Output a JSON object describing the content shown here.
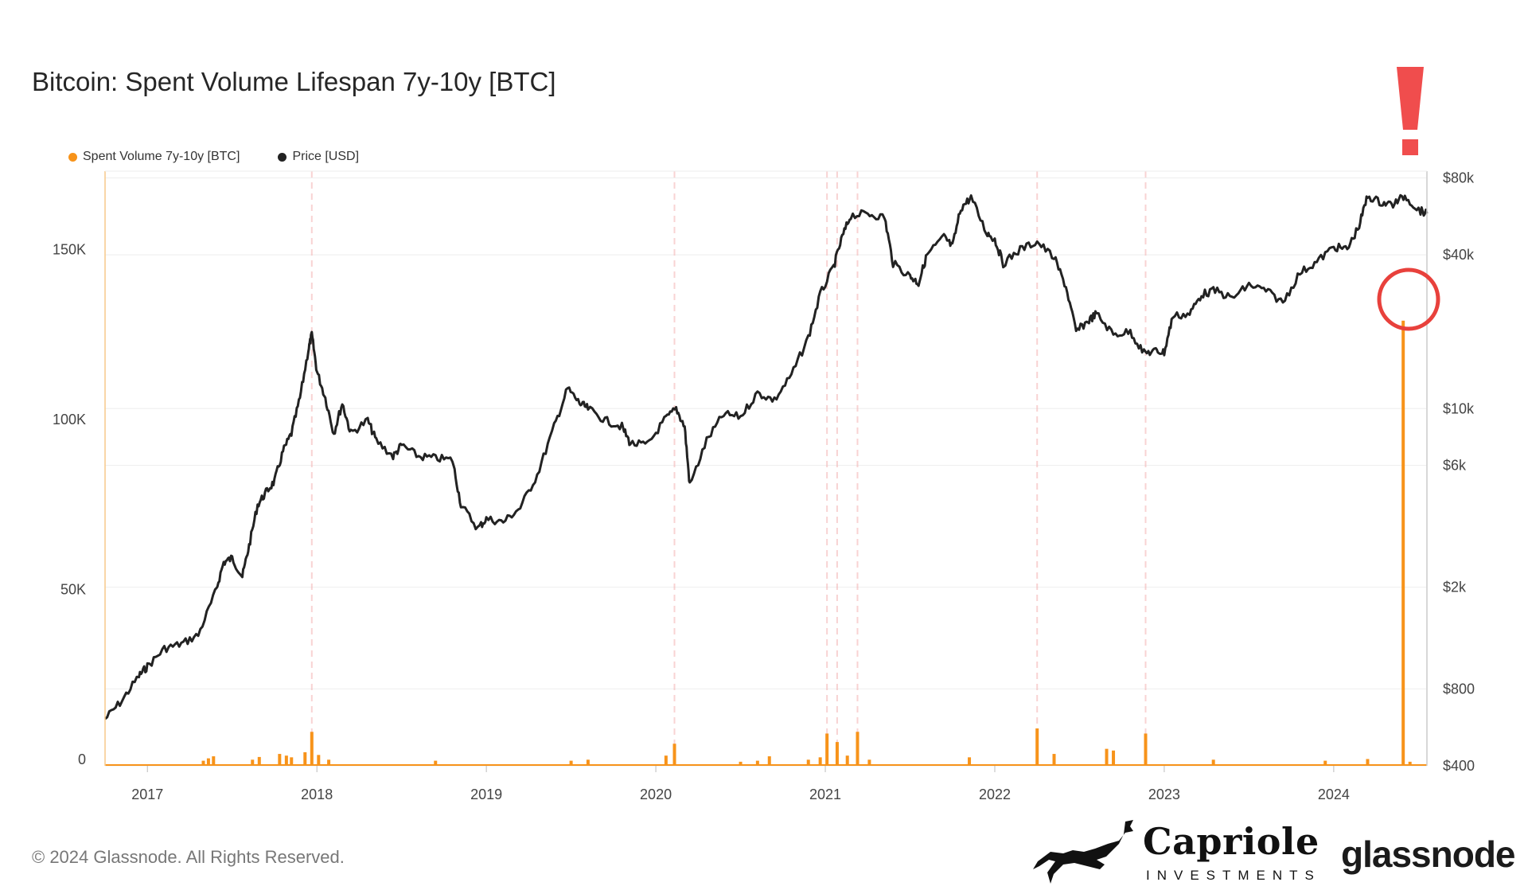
{
  "chart_data": {
    "type": "line",
    "title": "Bitcoin: Spent Volume Lifespan 7y-10y [BTC]",
    "xlabel": "",
    "ylabel": "",
    "x_ticks": [
      "2017",
      "2018",
      "2019",
      "2020",
      "2021",
      "2022",
      "2023",
      "2024"
    ],
    "y_left_ticks": [
      "150K",
      "100K",
      "50K",
      "0"
    ],
    "y_left_range": [
      0,
      175000
    ],
    "y_right_ticks": [
      "$80k",
      "$40k",
      "$10k",
      "$6k",
      "$2k",
      "$800",
      "$400"
    ],
    "y_right_scale": "log",
    "y_right_range": [
      400,
      85000
    ],
    "x_range": [
      2016.75,
      2024.55
    ],
    "grid": true,
    "legend_position": "top-left",
    "series": [
      {
        "name": "Spent Volume 7y-10y [BTC]",
        "color": "#f7931a",
        "axis": "left",
        "type": "bar",
        "points": [
          [
            2017.33,
            1500
          ],
          [
            2017.36,
            2200
          ],
          [
            2017.39,
            2800
          ],
          [
            2017.62,
            1800
          ],
          [
            2017.66,
            2600
          ],
          [
            2017.78,
            3500
          ],
          [
            2017.82,
            3000
          ],
          [
            2017.85,
            2500
          ],
          [
            2017.93,
            4000
          ],
          [
            2017.97,
            10000
          ],
          [
            2018.01,
            3200
          ],
          [
            2018.07,
            1800
          ],
          [
            2018.7,
            1500
          ],
          [
            2019.5,
            1500
          ],
          [
            2019.6,
            1800
          ],
          [
            2020.06,
            3000
          ],
          [
            2020.11,
            6500
          ],
          [
            2020.5,
            1200
          ],
          [
            2020.6,
            1500
          ],
          [
            2020.67,
            2800
          ],
          [
            2020.9,
            1800
          ],
          [
            2020.97,
            2500
          ],
          [
            2021.01,
            9500
          ],
          [
            2021.07,
            7000
          ],
          [
            2021.13,
            3000
          ],
          [
            2021.19,
            10000
          ],
          [
            2021.26,
            1800
          ],
          [
            2021.85,
            2500
          ],
          [
            2022.25,
            11000
          ],
          [
            2022.35,
            3500
          ],
          [
            2022.66,
            5000
          ],
          [
            2022.7,
            4500
          ],
          [
            2022.89,
            9500
          ],
          [
            2023.29,
            1800
          ],
          [
            2023.95,
            1500
          ],
          [
            2024.2,
            2000
          ],
          [
            2024.41,
            131000
          ],
          [
            2024.45,
            1200
          ]
        ]
      },
      {
        "name": "Price [USD]",
        "color": "#222222",
        "axis": "right",
        "type": "line",
        "points": [
          [
            2016.75,
            610
          ],
          [
            2016.85,
            720
          ],
          [
            2016.95,
            900
          ],
          [
            2017.0,
            980
          ],
          [
            2017.1,
            1150
          ],
          [
            2017.2,
            1200
          ],
          [
            2017.3,
            1300
          ],
          [
            2017.4,
            1900
          ],
          [
            2017.45,
            2500
          ],
          [
            2017.5,
            2600
          ],
          [
            2017.56,
            2200
          ],
          [
            2017.6,
            2900
          ],
          [
            2017.65,
            4200
          ],
          [
            2017.7,
            4700
          ],
          [
            2017.75,
            5200
          ],
          [
            2017.8,
            6800
          ],
          [
            2017.85,
            8000
          ],
          [
            2017.9,
            11000
          ],
          [
            2017.95,
            17000
          ],
          [
            2017.97,
            19500
          ],
          [
            2018.0,
            14000
          ],
          [
            2018.05,
            11000
          ],
          [
            2018.1,
            8000
          ],
          [
            2018.15,
            10500
          ],
          [
            2018.2,
            8000
          ],
          [
            2018.3,
            9000
          ],
          [
            2018.35,
            7500
          ],
          [
            2018.45,
            6500
          ],
          [
            2018.5,
            7200
          ],
          [
            2018.6,
            6500
          ],
          [
            2018.7,
            6400
          ],
          [
            2018.8,
            6300
          ],
          [
            2018.85,
            4200
          ],
          [
            2018.95,
            3400
          ],
          [
            2019.0,
            3700
          ],
          [
            2019.1,
            3600
          ],
          [
            2019.2,
            4100
          ],
          [
            2019.3,
            5500
          ],
          [
            2019.4,
            8500
          ],
          [
            2019.48,
            12000
          ],
          [
            2019.55,
            10500
          ],
          [
            2019.6,
            10000
          ],
          [
            2019.7,
            9000
          ],
          [
            2019.8,
            8500
          ],
          [
            2019.85,
            7300
          ],
          [
            2019.95,
            7200
          ],
          [
            2020.05,
            9000
          ],
          [
            2020.12,
            10000
          ],
          [
            2020.17,
            8500
          ],
          [
            2020.2,
            5000
          ],
          [
            2020.3,
            7500
          ],
          [
            2020.4,
            9500
          ],
          [
            2020.5,
            9300
          ],
          [
            2020.6,
            11500
          ],
          [
            2020.7,
            10800
          ],
          [
            2020.8,
            13500
          ],
          [
            2020.9,
            19000
          ],
          [
            2020.97,
            28000
          ],
          [
            2021.05,
            36000
          ],
          [
            2021.1,
            47000
          ],
          [
            2021.15,
            57000
          ],
          [
            2021.25,
            58000
          ],
          [
            2021.35,
            56000
          ],
          [
            2021.4,
            37000
          ],
          [
            2021.5,
            33000
          ],
          [
            2021.55,
            31000
          ],
          [
            2021.6,
            40000
          ],
          [
            2021.7,
            47000
          ],
          [
            2021.75,
            43000
          ],
          [
            2021.8,
            61000
          ],
          [
            2021.86,
            67000
          ],
          [
            2021.95,
            49000
          ],
          [
            2022.0,
            46000
          ],
          [
            2022.05,
            37000
          ],
          [
            2022.15,
            42000
          ],
          [
            2022.25,
            45000
          ],
          [
            2022.35,
            39000
          ],
          [
            2022.42,
            30000
          ],
          [
            2022.48,
            20000
          ],
          [
            2022.55,
            22000
          ],
          [
            2022.6,
            23500
          ],
          [
            2022.7,
            19500
          ],
          [
            2022.8,
            20000
          ],
          [
            2022.88,
            16500
          ],
          [
            2022.95,
            16800
          ],
          [
            2023.0,
            16600
          ],
          [
            2023.05,
            23000
          ],
          [
            2023.15,
            23500
          ],
          [
            2023.22,
            28000
          ],
          [
            2023.3,
            29000
          ],
          [
            2023.4,
            27000
          ],
          [
            2023.5,
            30500
          ],
          [
            2023.6,
            29000
          ],
          [
            2023.7,
            26000
          ],
          [
            2023.8,
            34000
          ],
          [
            2023.9,
            37500
          ],
          [
            2024.0,
            43000
          ],
          [
            2024.08,
            42000
          ],
          [
            2024.15,
            52000
          ],
          [
            2024.2,
            68000
          ],
          [
            2024.28,
            64000
          ],
          [
            2024.35,
            63000
          ],
          [
            2024.42,
            68000
          ],
          [
            2024.5,
            60000
          ],
          [
            2024.55,
            58000
          ]
        ]
      }
    ]
  },
  "legend": {
    "items": [
      {
        "label": "Spent Volume 7y-10y [BTC]",
        "color": "#f7931a"
      },
      {
        "label": "Price [USD]",
        "color": "#222222"
      }
    ]
  },
  "annotations": {
    "exclamation_color": "#f04d4d",
    "circle_color": "#e8413c"
  },
  "footer": {
    "copyright": "© 2024 Glassnode. All Rights Reserved.",
    "capriole_name": "Capriole",
    "capriole_sub": "INVESTMENTS",
    "glassnode": "glassnode"
  }
}
